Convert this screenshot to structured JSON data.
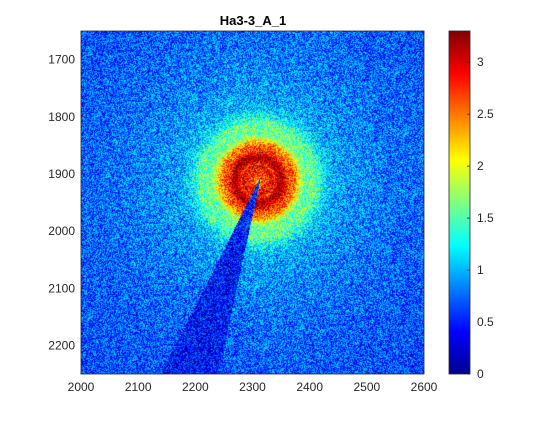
{
  "chart_data": {
    "type": "heatmap",
    "title": "Ha3-3_A_1",
    "xlabel": "",
    "ylabel": "",
    "xlim": [
      2000,
      2600
    ],
    "ylim": [
      1650,
      2250
    ],
    "y_reversed": true,
    "x_ticks": [
      "2000",
      "2100",
      "2200",
      "2300",
      "2400",
      "2500",
      "2600"
    ],
    "y_ticks": [
      "1700",
      "1800",
      "1900",
      "2000",
      "2100",
      "2200"
    ],
    "colorbar": {
      "colormap": "jet",
      "range": [
        0,
        3.3
      ],
      "ticks": [
        "0",
        "0.5",
        "1",
        "1.5",
        "2",
        "2.5",
        "3"
      ]
    },
    "pattern": {
      "center": [
        2310,
        1912
      ],
      "background_level": 0.6,
      "rings": [
        {
          "radius": 40,
          "peak": 3.2
        },
        {
          "radius": 65,
          "peak": 2.3
        },
        {
          "radius": 95,
          "peak": 1.5
        }
      ],
      "beamstop": {
        "apex": [
          2315,
          1905
        ],
        "base_left": [
          2140,
          2250
        ],
        "base_right": [
          2240,
          2250
        ],
        "level": 0.45
      }
    }
  }
}
